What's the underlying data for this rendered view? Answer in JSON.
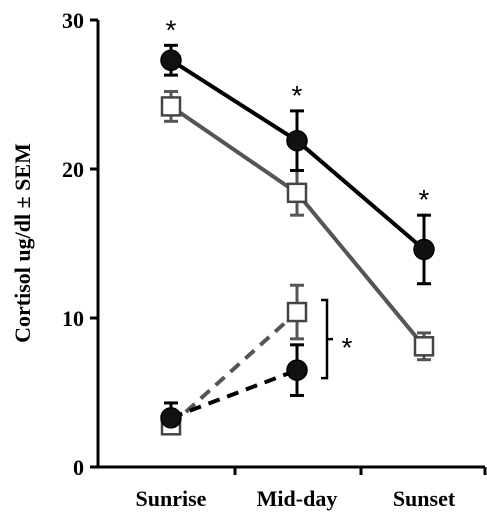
{
  "chart_data": {
    "type": "line",
    "categories": [
      "Sunrise",
      "Mid-day",
      "Sunset"
    ],
    "ylabel": "Cortisol ug/dl ± SEM",
    "ylim": [
      0,
      30
    ],
    "yticks": [
      "0",
      "10",
      "20",
      "30"
    ],
    "grid": false,
    "legend": "none",
    "series": [
      {
        "marker": "filled-circle",
        "line_style": "solid",
        "color": "#000000",
        "x": [
          "Sunrise",
          "Mid-day",
          "Sunset"
        ],
        "values": [
          27.3,
          21.9,
          14.6
        ],
        "errors": [
          1.0,
          2.0,
          2.3
        ]
      },
      {
        "marker": "open-square",
        "line_style": "solid",
        "color": "#555555",
        "x": [
          "Sunrise",
          "Mid-day",
          "Sunset"
        ],
        "values": [
          24.2,
          18.4,
          8.1
        ],
        "errors": [
          1.0,
          1.5,
          0.9
        ]
      },
      {
        "marker": "filled-circle",
        "line_style": "dashed",
        "color": "#000000",
        "x": [
          "Sunrise",
          "Mid-day"
        ],
        "values": [
          3.3,
          6.5
        ],
        "errors": [
          1.0,
          1.7
        ]
      },
      {
        "marker": "open-square",
        "line_style": "dashed",
        "color": "#555555",
        "x": [
          "Sunrise",
          "Mid-day"
        ],
        "values": [
          2.8,
          10.4
        ],
        "errors": [
          0.5,
          1.8
        ]
      }
    ],
    "annotations": [
      {
        "text": "*",
        "at": "Sunrise",
        "position": "above-top-series"
      },
      {
        "text": "*",
        "at": "Mid-day",
        "position": "above-top-series"
      },
      {
        "text": "*",
        "at": "Sunset",
        "position": "above-top-series"
      },
      {
        "text": "*",
        "at": "Mid-day",
        "position": "bracket-right-dashed-series"
      }
    ]
  }
}
